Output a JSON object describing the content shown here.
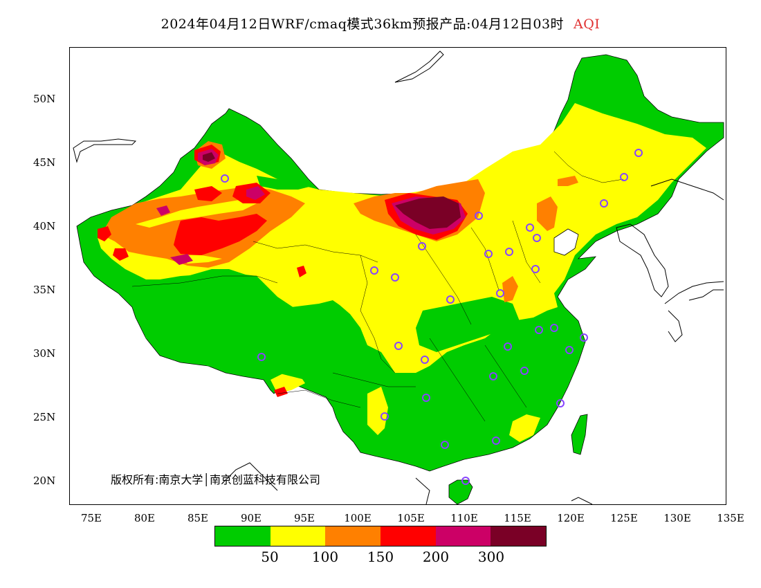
{
  "title": {
    "main": "2024年04月12日WRF/cmaq模式36km预报产品:04月12日03时",
    "variable": "AQI"
  },
  "y_axis": {
    "ticks": [
      {
        "label": "50N",
        "lat": 50
      },
      {
        "label": "45N",
        "lat": 45
      },
      {
        "label": "40N",
        "lat": 40
      },
      {
        "label": "35N",
        "lat": 35
      },
      {
        "label": "30N",
        "lat": 30
      },
      {
        "label": "25N",
        "lat": 25
      },
      {
        "label": "20N",
        "lat": 20
      }
    ]
  },
  "x_axis": {
    "ticks": [
      {
        "label": "75E",
        "lon": 75
      },
      {
        "label": "80E",
        "lon": 80
      },
      {
        "label": "85E",
        "lon": 85
      },
      {
        "label": "90E",
        "lon": 90
      },
      {
        "label": "95E",
        "lon": 95
      },
      {
        "label": "100E",
        "lon": 100
      },
      {
        "label": "105E",
        "lon": 105
      },
      {
        "label": "110E",
        "lon": 110
      },
      {
        "label": "115E",
        "lon": 115
      },
      {
        "label": "120E",
        "lon": 120
      },
      {
        "label": "125E",
        "lon": 125
      },
      {
        "label": "130E",
        "lon": 130
      },
      {
        "label": "135E",
        "lon": 135
      }
    ]
  },
  "colorbar": {
    "colors": [
      "#00cc00",
      "#ffff00",
      "#ff8000",
      "#ff0000",
      "#cc0066",
      "#7a0026"
    ],
    "labels": [
      "50",
      "100",
      "150",
      "200",
      "300"
    ]
  },
  "copyright": "版权所有:南京大学│南京创蓝科技有限公司",
  "colors": {
    "good": "#00cc00",
    "moderate": "#ffff00",
    "usg": "#ff8000",
    "unhealthy": "#ff0000",
    "very_unhealthy": "#cc0066",
    "hazardous": "#7a0026",
    "city_marker": "#8844ff"
  }
}
